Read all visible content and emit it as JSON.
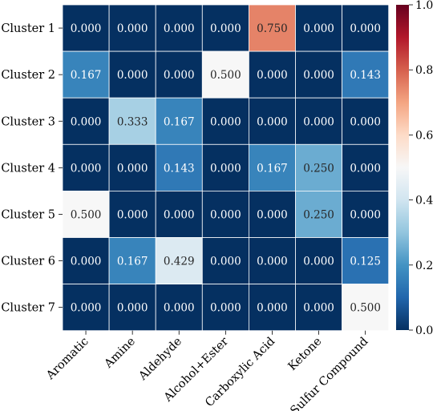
{
  "chart_data": {
    "type": "heatmap",
    "title": "",
    "xlabel": "",
    "ylabel": "",
    "rows": [
      "Cluster 1",
      "Cluster 2",
      "Cluster 3",
      "Cluster 4",
      "Cluster 5",
      "Cluster 6",
      "Cluster 7"
    ],
    "columns": [
      "Aromatic",
      "Amine",
      "Aldehyde",
      "Alcohol+Ester",
      "Carboxylic Acid",
      "Ketone",
      "Sulfur Compound"
    ],
    "values": [
      [
        0.0,
        0.0,
        0.0,
        0.0,
        0.75,
        0.0,
        0.0
      ],
      [
        0.167,
        0.0,
        0.0,
        0.5,
        0.0,
        0.0,
        0.143
      ],
      [
        0.0,
        0.333,
        0.167,
        0.0,
        0.0,
        0.0,
        0.0
      ],
      [
        0.0,
        0.0,
        0.143,
        0.0,
        0.167,
        0.25,
        0.0
      ],
      [
        0.5,
        0.0,
        0.0,
        0.0,
        0.0,
        0.25,
        0.0
      ],
      [
        0.0,
        0.167,
        0.429,
        0.0,
        0.0,
        0.0,
        0.125
      ],
      [
        0.0,
        0.0,
        0.0,
        0.0,
        0.0,
        0.0,
        0.5
      ]
    ],
    "value_format_decimals": 3,
    "colormap": "RdBu_r",
    "colorbar": {
      "range": [
        0.0,
        1.0
      ],
      "ticks": [
        "0.0",
        "0.2",
        "0.4",
        "0.6",
        "0.8",
        "1.0"
      ],
      "placement": "right"
    },
    "grid": true
  }
}
